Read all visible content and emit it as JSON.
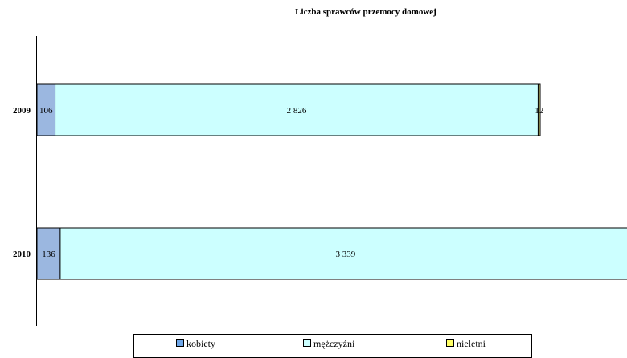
{
  "chart_data": {
    "type": "bar",
    "orientation": "horizontal",
    "stacked": true,
    "title": "Liczba sprawców przemocy domowej",
    "categories": [
      "2009",
      "2010"
    ],
    "series": [
      {
        "name": "kobiety",
        "values": [
          106,
          136
        ],
        "labels": [
          "106",
          "136"
        ],
        "color": "#9bb7e0"
      },
      {
        "name": "mężczyźni",
        "values": [
          2826,
          3339
        ],
        "labels": [
          "2 826",
          "3 339"
        ],
        "color": "#ccffff"
      },
      {
        "name": "nieletni",
        "values": [
          12,
          0
        ],
        "labels": [
          "12",
          ""
        ],
        "color": "#ffff99"
      }
    ],
    "xlim": [
      0,
      3475
    ],
    "grid": false,
    "legend_position": "bottom"
  }
}
